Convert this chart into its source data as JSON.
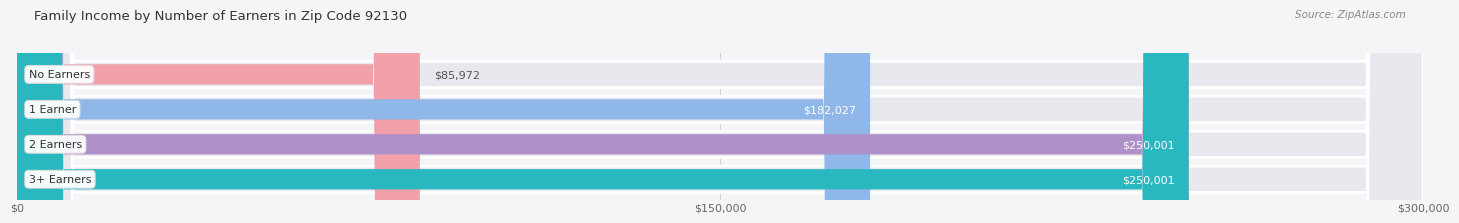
{
  "title": "Family Income by Number of Earners in Zip Code 92130",
  "source": "Source: ZipAtlas.com",
  "categories": [
    "No Earners",
    "1 Earner",
    "2 Earners",
    "3+ Earners"
  ],
  "values": [
    85972,
    182027,
    250001,
    250001
  ],
  "max_value": 300000,
  "bar_colors": [
    "#f2a0aa",
    "#8fb8e8",
    "#b090c8",
    "#2ab8c0"
  ],
  "bar_track_color": "#e8e8ee",
  "value_labels": [
    "$85,972",
    "$182,027",
    "$250,001",
    "$250,001"
  ],
  "value_label_colors": [
    "#555555",
    "#ffffff",
    "#ffffff",
    "#ffffff"
  ],
  "x_ticks": [
    0,
    150000,
    300000
  ],
  "x_tick_labels": [
    "$0",
    "$150,000",
    "$300,000"
  ],
  "background_color": "#f5f5f8",
  "title_fontsize": 9.5,
  "source_fontsize": 7.5,
  "bar_label_fontsize": 8,
  "value_label_fontsize": 8,
  "tick_fontsize": 8
}
